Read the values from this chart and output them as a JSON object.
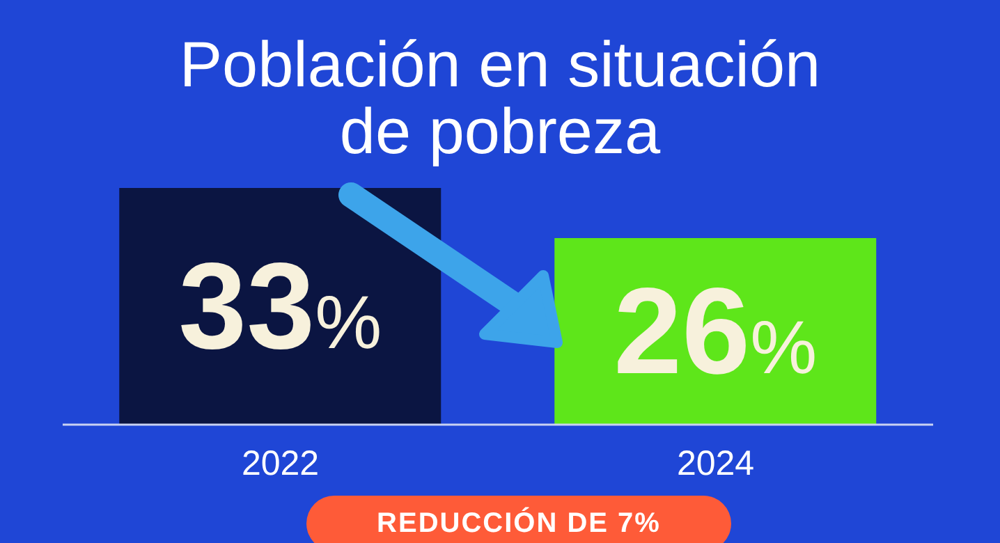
{
  "chart_data": {
    "type": "bar",
    "title": "Población en situación de pobreza",
    "categories": [
      "2022",
      "2024"
    ],
    "values": [
      33,
      26
    ],
    "colors": [
      "#0b1542",
      "#5ee61a"
    ],
    "value_labels": [
      "33%",
      "26%"
    ],
    "annotations": [
      "REDUCCIÓN DE 7%"
    ],
    "grid": false,
    "legend": false
  }
}
